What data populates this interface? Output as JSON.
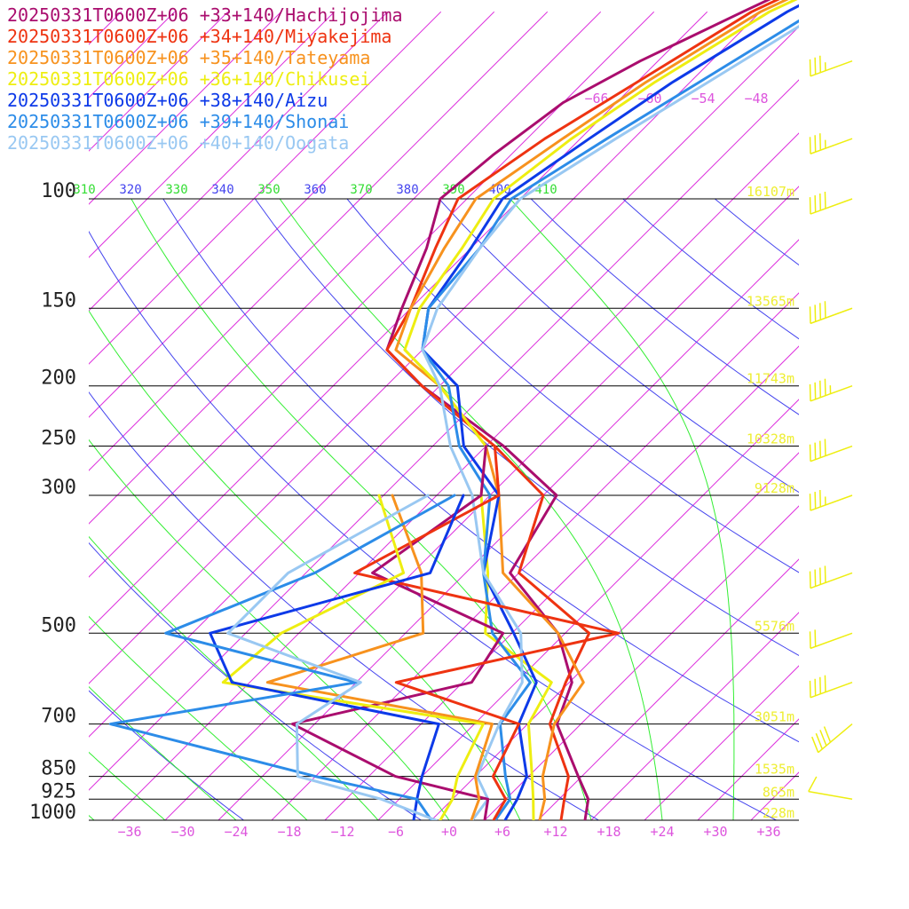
{
  "chart_data": {
    "type": "line",
    "title": "",
    "xlabel": "",
    "ylabel": "",
    "xlim": [
      -40,
      40
    ],
    "ylim": [
      1000,
      100
    ],
    "grid": true,
    "legend_position": "top-left",
    "x_ticks": [
      "−36",
      "−30",
      "−24",
      "−18",
      "−12",
      "−6",
      "+0",
      "+6",
      "+12",
      "+18",
      "+24",
      "+30",
      "+36"
    ],
    "x_tick_values": [
      -36,
      -30,
      -24,
      -18,
      -12,
      -6,
      0,
      6,
      12,
      18,
      24,
      30,
      36
    ],
    "upper_temp_labels": [
      "−66",
      "−60",
      "−54",
      "−48"
    ],
    "pressure_levels": [
      100,
      150,
      200,
      250,
      300,
      500,
      700,
      850,
      925,
      1000
    ],
    "height_labels": [
      {
        "p": 100,
        "label": "16107m"
      },
      {
        "p": 150,
        "label": "13565m"
      },
      {
        "p": 200,
        "label": "11743m"
      },
      {
        "p": 250,
        "label": "10328m"
      },
      {
        "p": 300,
        "label": "9128m"
      },
      {
        "p": 500,
        "label": "5576m"
      },
      {
        "p": 700,
        "label": "3051m"
      },
      {
        "p": 850,
        "label": "1535m"
      },
      {
        "p": 925,
        "label": "865m"
      },
      {
        "p": 1000,
        "label": "228m"
      }
    ],
    "theta_labels": [
      "310",
      "320",
      "330",
      "340",
      "350",
      "360",
      "370",
      "380",
      "390",
      "400",
      "410"
    ],
    "colors": {
      "isotherm": "#dd33dd",
      "dry_adiabat": "#4444ee",
      "moist_adiabat": "#33ee33",
      "isobar": "#000000",
      "height_text": "#eeee33",
      "barb": "#eeee11",
      "tick_text": "#dd55dd"
    },
    "series": [
      {
        "name": "20250331T0600Z+06 +33+140/Hachijojima",
        "color": "#aa0d6e",
        "points": [
          [
            1000,
            15.3
          ],
          [
            925,
            13.3
          ],
          [
            850,
            9.6
          ],
          [
            700,
            1.3
          ],
          [
            600,
            -1.7
          ],
          [
            500,
            -8.8
          ],
          [
            400,
            -21
          ],
          [
            300,
            -24.5
          ],
          [
            250,
            -36
          ],
          [
            200,
            -52
          ],
          [
            175,
            -60
          ],
          [
            150,
            -63
          ],
          [
            120,
            -67
          ],
          [
            100,
            -71
          ],
          [
            85,
            -70
          ],
          [
            70,
            -68
          ],
          [
            60,
            -64
          ],
          [
            50,
            -58
          ],
          [
            42,
            -52
          ],
          [
            38,
            -48
          ]
        ]
      },
      {
        "name": "20250331T0600Z+06 +34+140/Miyakejima",
        "color": "#ee3311",
        "points": [
          [
            1000,
            12.6
          ],
          [
            925,
            10.6
          ],
          [
            850,
            8.5
          ],
          [
            700,
            0.5
          ],
          [
            600,
            -2.4
          ],
          [
            500,
            -5.3
          ],
          [
            400,
            -20
          ],
          [
            300,
            -26
          ],
          [
            250,
            -37
          ],
          [
            200,
            -52
          ],
          [
            175,
            -60
          ],
          [
            150,
            -62
          ],
          [
            120,
            -66
          ],
          [
            100,
            -69
          ],
          [
            80,
            -66
          ],
          [
            65,
            -62
          ],
          [
            50,
            -57
          ],
          [
            42,
            -51
          ],
          [
            38,
            -47
          ]
        ]
      },
      {
        "name": "20250331T0600Z+06 +35+140/Tateyama",
        "color": "#f7921e",
        "points": [
          [
            1000,
            10.2
          ],
          [
            925,
            8.4
          ],
          [
            850,
            5.6
          ],
          [
            700,
            1.0
          ],
          [
            600,
            -0.4
          ],
          [
            500,
            -8.8
          ],
          [
            400,
            -21.8
          ],
          [
            300,
            -31
          ],
          [
            250,
            -38
          ],
          [
            200,
            -50
          ],
          [
            175,
            -59
          ],
          [
            150,
            -62
          ],
          [
            120,
            -65
          ],
          [
            100,
            -67
          ],
          [
            80,
            -64
          ],
          [
            65,
            -61
          ],
          [
            50,
            -56
          ],
          [
            42,
            -50
          ],
          [
            38,
            -46
          ]
        ]
      },
      {
        "name": "20250331T0600Z+06 +36+140/Chikusei",
        "color": "#eeee11",
        "points": [
          [
            1000,
            9.5
          ],
          [
            925,
            7.1
          ],
          [
            850,
            4.4
          ],
          [
            700,
            -1.9
          ],
          [
            600,
            -4.0
          ],
          [
            500,
            -17
          ],
          [
            400,
            -23.5
          ],
          [
            300,
            -33
          ],
          [
            250,
            -38
          ],
          [
            200,
            -50
          ],
          [
            175,
            -58
          ],
          [
            150,
            -61
          ],
          [
            120,
            -63
          ],
          [
            100,
            -65
          ],
          [
            80,
            -63
          ],
          [
            65,
            -60
          ],
          [
            50,
            -55
          ],
          [
            42,
            -49
          ],
          [
            38,
            -45
          ]
        ]
      },
      {
        "name": "20250331T0600Z+06 +38+140/Aizu",
        "color": "#0d3ae8",
        "points": [
          [
            1000,
            6.3
          ],
          [
            925,
            5.3
          ],
          [
            850,
            3.8
          ],
          [
            700,
            -3.0
          ],
          [
            600,
            -5.7
          ],
          [
            500,
            -13.8
          ],
          [
            400,
            -24
          ],
          [
            300,
            -31
          ],
          [
            250,
            -40.5
          ],
          [
            200,
            -48
          ],
          [
            175,
            -56
          ],
          [
            150,
            -60
          ],
          [
            120,
            -62
          ],
          [
            100,
            -64
          ],
          [
            80,
            -61
          ],
          [
            65,
            -58
          ],
          [
            50,
            -53
          ],
          [
            42,
            -48
          ],
          [
            38,
            -44
          ]
        ]
      },
      {
        "name": "20250331T0600Z+06 +39+140/Shonai",
        "color": "#2c8ce8",
        "points": [
          [
            1000,
            5.2
          ],
          [
            925,
            4.5
          ],
          [
            850,
            1.4
          ],
          [
            700,
            -5.1
          ],
          [
            600,
            -6.4
          ],
          [
            500,
            -16.2
          ],
          [
            400,
            -24
          ],
          [
            300,
            -32
          ],
          [
            250,
            -41
          ],
          [
            200,
            -49
          ],
          [
            175,
            -56
          ],
          [
            150,
            -60
          ],
          [
            120,
            -61
          ],
          [
            100,
            -63
          ],
          [
            80,
            -59
          ],
          [
            65,
            -55
          ],
          [
            50,
            -50
          ],
          [
            42,
            -46
          ],
          [
            38,
            -42
          ]
        ]
      },
      {
        "name": "20250331T0600Z+06 +40+140/Oogata",
        "color": "#99c8f2",
        "points": [
          [
            1000,
            2.6
          ],
          [
            925,
            2.0
          ],
          [
            850,
            -1.8
          ],
          [
            700,
            -5.2
          ],
          [
            600,
            -7.3
          ],
          [
            500,
            -13.0
          ],
          [
            400,
            -24
          ],
          [
            300,
            -34
          ],
          [
            250,
            -42
          ],
          [
            200,
            -50
          ],
          [
            175,
            -56
          ],
          [
            150,
            -59
          ],
          [
            120,
            -61
          ],
          [
            100,
            -62
          ],
          [
            80,
            -58
          ],
          [
            65,
            -54
          ],
          [
            50,
            -49
          ],
          [
            42,
            -44
          ],
          [
            38,
            -40
          ]
        ]
      }
    ],
    "dewpoint_series": [
      {
        "name": "Hachijojima",
        "color": "#aa0d6e",
        "points": [
          [
            1000,
            4
          ],
          [
            925,
            2
          ],
          [
            850,
            -11
          ],
          [
            700,
            -28.5
          ],
          [
            600,
            -13
          ],
          [
            500,
            -15
          ],
          [
            400,
            -36.5
          ],
          [
            300,
            -33
          ],
          [
            250,
            -38
          ]
        ]
      },
      {
        "name": "Miyakejima",
        "color": "#ee3311",
        "points": [
          [
            1000,
            5
          ],
          [
            925,
            4
          ],
          [
            850,
            0
          ],
          [
            700,
            -3
          ],
          [
            600,
            -21.5
          ],
          [
            500,
            -2
          ],
          [
            400,
            -38.5
          ],
          [
            300,
            -31
          ],
          [
            250,
            -37
          ]
        ]
      },
      {
        "name": "Tateyama",
        "color": "#f7921e",
        "points": [
          [
            1000,
            2.5
          ],
          [
            925,
            1
          ],
          [
            850,
            -2
          ],
          [
            700,
            -6
          ],
          [
            600,
            -36
          ],
          [
            500,
            -24
          ],
          [
            400,
            -31
          ],
          [
            300,
            -43
          ]
        ]
      },
      {
        "name": "Chikusei",
        "color": "#eeee11",
        "points": [
          [
            1000,
            -1
          ],
          [
            925,
            -2
          ],
          [
            850,
            -4
          ],
          [
            700,
            -7
          ],
          [
            600,
            -41
          ],
          [
            500,
            -40
          ],
          [
            400,
            -33
          ],
          [
            300,
            -44.5
          ]
        ]
      },
      {
        "name": "Aizu",
        "color": "#0d3ae8",
        "points": [
          [
            1000,
            -4
          ],
          [
            925,
            -6
          ],
          [
            850,
            -8
          ],
          [
            700,
            -12
          ],
          [
            600,
            -40
          ],
          [
            500,
            -48
          ],
          [
            400,
            -30
          ],
          [
            300,
            -35
          ]
        ]
      },
      {
        "name": "Shonai",
        "color": "#2c8ce8",
        "points": [
          [
            1000,
            -2
          ],
          [
            925,
            -6
          ],
          [
            850,
            -20
          ],
          [
            700,
            -49
          ],
          [
            600,
            -26
          ],
          [
            500,
            -53
          ],
          [
            400,
            -43
          ],
          [
            300,
            -36
          ]
        ]
      },
      {
        "name": "Oogata",
        "color": "#99c8f2",
        "points": [
          [
            1000,
            -1.5
          ],
          [
            925,
            -10
          ],
          [
            850,
            -22
          ],
          [
            700,
            -28
          ],
          [
            600,
            -25.5
          ],
          [
            500,
            -46
          ],
          [
            400,
            -46
          ],
          [
            300,
            -39
          ]
        ]
      }
    ],
    "wind_barbs": [
      {
        "p": 60,
        "dir": 250,
        "kt": 35
      },
      {
        "p": 80,
        "dir": 250,
        "kt": 35
      },
      {
        "p": 100,
        "dir": 250,
        "kt": 40
      },
      {
        "p": 150,
        "dir": 250,
        "kt": 40
      },
      {
        "p": 200,
        "dir": 250,
        "kt": 45
      },
      {
        "p": 250,
        "dir": 250,
        "kt": 40
      },
      {
        "p": 300,
        "dir": 250,
        "kt": 35
      },
      {
        "p": 400,
        "dir": 250,
        "kt": 40
      },
      {
        "p": 500,
        "dir": 250,
        "kt": 20
      },
      {
        "p": 600,
        "dir": 250,
        "kt": 40
      },
      {
        "p": 700,
        "dir": 230,
        "kt": 40
      },
      {
        "p": 925,
        "dir": 280,
        "kt": 10
      }
    ]
  }
}
